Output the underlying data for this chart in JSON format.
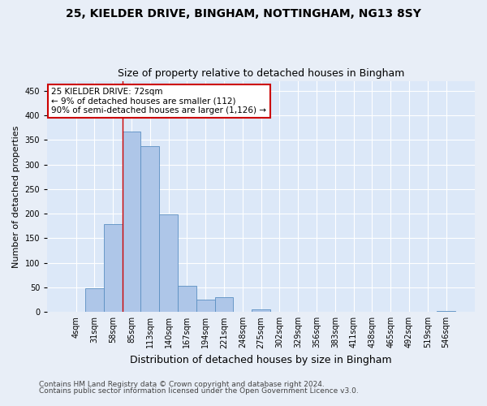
{
  "title1": "25, KIELDER DRIVE, BINGHAM, NOTTINGHAM, NG13 8SY",
  "title2": "Size of property relative to detached houses in Bingham",
  "xlabel": "Distribution of detached houses by size in Bingham",
  "ylabel": "Number of detached properties",
  "categories": [
    "4sqm",
    "31sqm",
    "58sqm",
    "85sqm",
    "113sqm",
    "140sqm",
    "167sqm",
    "194sqm",
    "221sqm",
    "248sqm",
    "275sqm",
    "302sqm",
    "329sqm",
    "356sqm",
    "383sqm",
    "411sqm",
    "438sqm",
    "465sqm",
    "492sqm",
    "519sqm",
    "546sqm"
  ],
  "values": [
    0,
    48,
    179,
    367,
    338,
    199,
    54,
    25,
    31,
    0,
    6,
    0,
    1,
    0,
    0,
    0,
    0,
    0,
    0,
    0,
    2
  ],
  "bar_color": "#aec6e8",
  "bar_edge_color": "#5a8fc2",
  "vline_x": 2.5,
  "vline_color": "#cc0000",
  "annotation_title": "25 KIELDER DRIVE: 72sqm",
  "annotation_line1": "← 9% of detached houses are smaller (112)",
  "annotation_line2": "90% of semi-detached houses are larger (1,126) →",
  "annotation_box_facecolor": "#ffffff",
  "annotation_box_edgecolor": "#cc0000",
  "ylim": [
    0,
    470
  ],
  "yticks": [
    0,
    50,
    100,
    150,
    200,
    250,
    300,
    350,
    400,
    450
  ],
  "footer1": "Contains HM Land Registry data © Crown copyright and database right 2024.",
  "footer2": "Contains public sector information licensed under the Open Government Licence v3.0.",
  "background_color": "#e8eef7",
  "plot_background_color": "#dce8f8",
  "title1_fontsize": 10,
  "title2_fontsize": 9,
  "xlabel_fontsize": 9,
  "ylabel_fontsize": 8,
  "annotation_fontsize": 7.5,
  "footer_fontsize": 6.5,
  "tick_fontsize": 7
}
